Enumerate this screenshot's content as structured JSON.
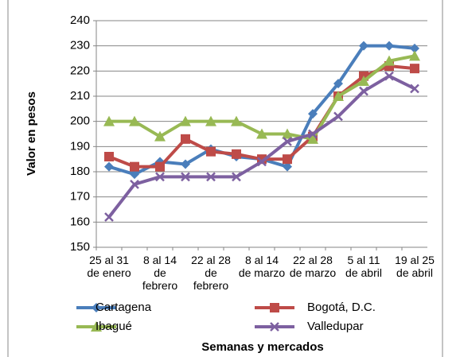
{
  "chart_data": {
    "type": "line",
    "x_label": "Semanas y mercados",
    "y_label": "Valor en pesos",
    "categories": [
      "25 al 31 de enero",
      null,
      "8 al 14 de febrero",
      null,
      "22 al 28 de febrero",
      null,
      "8 al 14 de marzo",
      null,
      "22 al 28 de marzo",
      null,
      "5 al 11 de abril",
      null,
      "19 al 25 de abril"
    ],
    "series": [
      {
        "name": "Cartagena",
        "color": "#4a7ebb",
        "marker": "diamond",
        "values": [
          182,
          179,
          184,
          183,
          189,
          186,
          185,
          182,
          203,
          215,
          230,
          230,
          229
        ]
      },
      {
        "name": "Bogotá, D.C.",
        "color": "#be4b48",
        "marker": "square",
        "values": [
          186,
          182,
          182,
          193,
          188,
          187,
          185,
          185,
          194,
          210,
          218,
          222,
          221
        ]
      },
      {
        "name": "Ibagué",
        "color": "#98b954",
        "marker": "triangle",
        "values": [
          200,
          200,
          194,
          200,
          200,
          200,
          195,
          195,
          193,
          210,
          216,
          224,
          226
        ]
      },
      {
        "name": "Valledupar",
        "color": "#7d60a0",
        "marker": "x",
        "values": [
          162,
          175,
          178,
          178,
          178,
          178,
          184,
          192,
          195,
          202,
          212,
          218,
          213
        ]
      }
    ],
    "ylim": [
      150,
      240
    ],
    "yticks": [
      150,
      160,
      170,
      180,
      190,
      200,
      210,
      220,
      230,
      240
    ],
    "grid": true
  }
}
